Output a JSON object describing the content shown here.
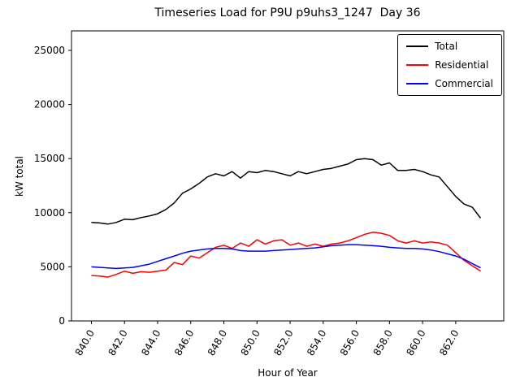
{
  "chart_data": {
    "type": "line",
    "title": "Timeseries Load for P9U p9uhs3_1247  Day 36",
    "xlabel": "Hour of Year",
    "ylabel": "kW total",
    "xlim": [
      838.8,
      864.9
    ],
    "ylim": [
      0,
      26800
    ],
    "grid": false,
    "legend_position": "upper right",
    "xticks": [
      840.0,
      842.0,
      844.0,
      846.0,
      848.0,
      850.0,
      852.0,
      854.0,
      856.0,
      858.0,
      860.0,
      862.0
    ],
    "xtick_labels": [
      "840.0",
      "842.0",
      "844.0",
      "846.0",
      "848.0",
      "850.0",
      "852.0",
      "854.0",
      "856.0",
      "858.0",
      "860.0",
      "862.0"
    ],
    "yticks": [
      0,
      5000,
      10000,
      15000,
      20000,
      25000
    ],
    "ytick_labels": [
      "0",
      "5000",
      "10000",
      "15000",
      "20000",
      "25000"
    ],
    "x": [
      840.0,
      840.5,
      841.0,
      841.5,
      842.0,
      842.5,
      843.0,
      843.5,
      844.0,
      844.5,
      845.0,
      845.5,
      846.0,
      846.5,
      847.0,
      847.5,
      848.0,
      848.5,
      849.0,
      849.5,
      850.0,
      850.5,
      851.0,
      851.5,
      852.0,
      852.5,
      853.0,
      853.5,
      854.0,
      854.5,
      855.0,
      855.5,
      856.0,
      856.5,
      857.0,
      857.5,
      858.0,
      858.5,
      859.0,
      859.5,
      860.0,
      860.5,
      861.0,
      861.5,
      862.0,
      862.5,
      863.0,
      863.5
    ],
    "series": [
      {
        "name": "Total",
        "color": "#000000",
        "values": [
          9100,
          9050,
          8950,
          9100,
          9400,
          9350,
          9550,
          9700,
          9900,
          10300,
          10900,
          11800,
          12200,
          12700,
          13300,
          13600,
          13400,
          13800,
          13200,
          13800,
          13700,
          13900,
          13800,
          13600,
          13400,
          13800,
          13600,
          13800,
          14000,
          14100,
          14300,
          14500,
          14900,
          15000,
          14900,
          14400,
          14600,
          13900,
          13900,
          14000,
          13800,
          13500,
          13300,
          12400,
          11500,
          10800,
          10500,
          9500
        ]
      },
      {
        "name": "Residential",
        "color": "#ff0000",
        "values": [
          4200,
          4150,
          4050,
          4300,
          4600,
          4400,
          4550,
          4500,
          4600,
          4700,
          5400,
          5200,
          6000,
          5800,
          6300,
          6800,
          7000,
          6700,
          7200,
          6900,
          7500,
          7100,
          7400,
          7500,
          7000,
          7200,
          6900,
          7100,
          6900,
          7100,
          7200,
          7400,
          7700,
          8000,
          8200,
          8100,
          7900,
          7400,
          7200,
          7400,
          7200,
          7300,
          7200,
          7000,
          6300,
          5600,
          5100,
          4600
        ]
      },
      {
        "name": "Commercial",
        "color": "#0000ff",
        "values": [
          5000,
          4950,
          4900,
          4850,
          4900,
          4950,
          5100,
          5250,
          5500,
          5750,
          6000,
          6250,
          6450,
          6550,
          6650,
          6700,
          6700,
          6650,
          6500,
          6450,
          6450,
          6450,
          6500,
          6550,
          6600,
          6650,
          6700,
          6750,
          6850,
          6950,
          7000,
          7050,
          7050,
          7000,
          6950,
          6900,
          6800,
          6750,
          6700,
          6700,
          6650,
          6550,
          6400,
          6200,
          6000,
          5700,
          5300,
          4900
        ]
      }
    ]
  }
}
